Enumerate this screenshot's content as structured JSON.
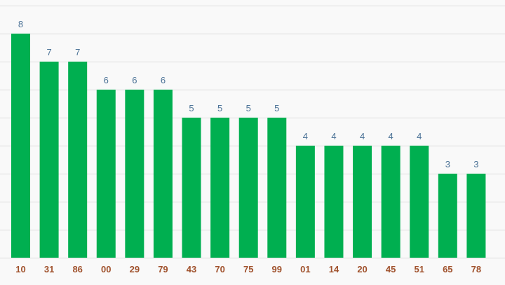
{
  "chart_data": {
    "type": "bar",
    "categories": [
      "10",
      "31",
      "86",
      "00",
      "29",
      "79",
      "43",
      "70",
      "75",
      "99",
      "01",
      "14",
      "20",
      "45",
      "51",
      "65",
      "78"
    ],
    "values": [
      8,
      7,
      7,
      6,
      6,
      6,
      5,
      5,
      5,
      5,
      4,
      4,
      4,
      4,
      4,
      3,
      3
    ],
    "title": "",
    "xlabel": "",
    "ylabel": "",
    "ylim": [
      0,
      9
    ],
    "grid": true,
    "data_labels": true,
    "colors": {
      "bar": "#00af50",
      "value_label": "#4b7296",
      "tick_label": "#a0522d",
      "grid": "#dcdcdc",
      "background": "#f9f9f9"
    }
  }
}
